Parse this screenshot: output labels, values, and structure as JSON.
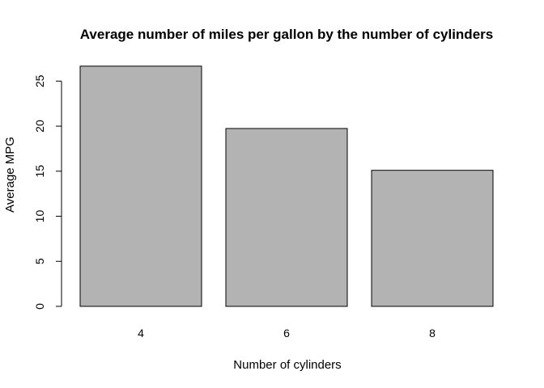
{
  "chart_data": {
    "type": "bar",
    "title": "Average number of miles per gallon by the number of cylinders",
    "xlabel": "Number of cylinders",
    "ylabel": "Average MPG",
    "categories": [
      "4",
      "6",
      "8"
    ],
    "values": [
      26.66,
      19.74,
      15.1
    ],
    "ylim": [
      0,
      27.99
    ],
    "yticks": [
      0,
      5,
      10,
      15,
      20,
      25
    ],
    "bar_color": "#b3b3b3",
    "grid": false,
    "legend": "none"
  }
}
